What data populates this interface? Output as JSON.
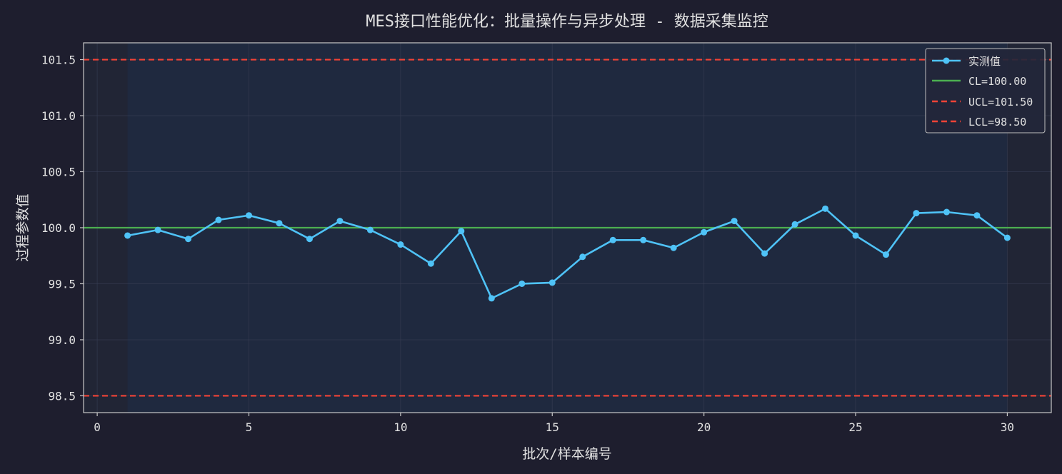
{
  "chart_data": {
    "type": "line",
    "title": "MES接口性能优化：批量操作与异步处理 - 数据采集监控",
    "xlabel": "批次/样本编号",
    "ylabel": "过程参数值",
    "xlim": [
      -0.45,
      31.45
    ],
    "ylim": [
      98.35,
      101.65
    ],
    "x_ticks": [
      0,
      5,
      10,
      15,
      20,
      25,
      30
    ],
    "x_tick_labels": [
      "0",
      "5",
      "10",
      "15",
      "20",
      "25",
      "30"
    ],
    "y_ticks": [
      98.5,
      99.0,
      99.5,
      100.0,
      100.5,
      101.0,
      101.5
    ],
    "y_tick_labels": [
      "98.5",
      "99.0",
      "99.5",
      "100.0",
      "100.5",
      "101.0",
      "101.5"
    ],
    "grid": true,
    "legend_position": "top-right",
    "shaded_x_range": [
      1,
      30
    ],
    "series": [
      {
        "name": "实测值",
        "color": "#4fc3f7",
        "x": [
          1,
          2,
          3,
          4,
          5,
          6,
          7,
          8,
          9,
          10,
          11,
          12,
          13,
          14,
          15,
          16,
          17,
          18,
          19,
          20,
          21,
          22,
          23,
          24,
          25,
          26,
          27,
          28,
          29,
          30
        ],
        "y": [
          99.93,
          99.98,
          99.9,
          100.07,
          100.11,
          100.04,
          99.9,
          100.06,
          99.98,
          99.85,
          99.68,
          99.97,
          99.37,
          99.5,
          99.51,
          99.74,
          99.89,
          99.89,
          99.82,
          99.96,
          100.06,
          99.77,
          100.03,
          100.17,
          99.93,
          99.76,
          100.13,
          100.14,
          100.11,
          99.91
        ]
      }
    ],
    "control_lines": [
      {
        "name": "CL=100.00",
        "value": 100.0,
        "color": "#4caf50",
        "style": "solid"
      },
      {
        "name": "UCL=101.50",
        "value": 101.5,
        "color": "#f44336",
        "style": "dashed"
      },
      {
        "name": "LCL=98.50",
        "value": 98.5,
        "color": "#f44336",
        "style": "dashed"
      }
    ]
  },
  "colors": {
    "background": "#1e1e2e",
    "plot_background": "#212535",
    "shaded_region": "#1f2a40",
    "axis": "#c8c8c8",
    "text": "#e0e0e0",
    "grid": "#3a3f55",
    "legend_background": "#23263a",
    "legend_border": "#bdbdbd"
  }
}
